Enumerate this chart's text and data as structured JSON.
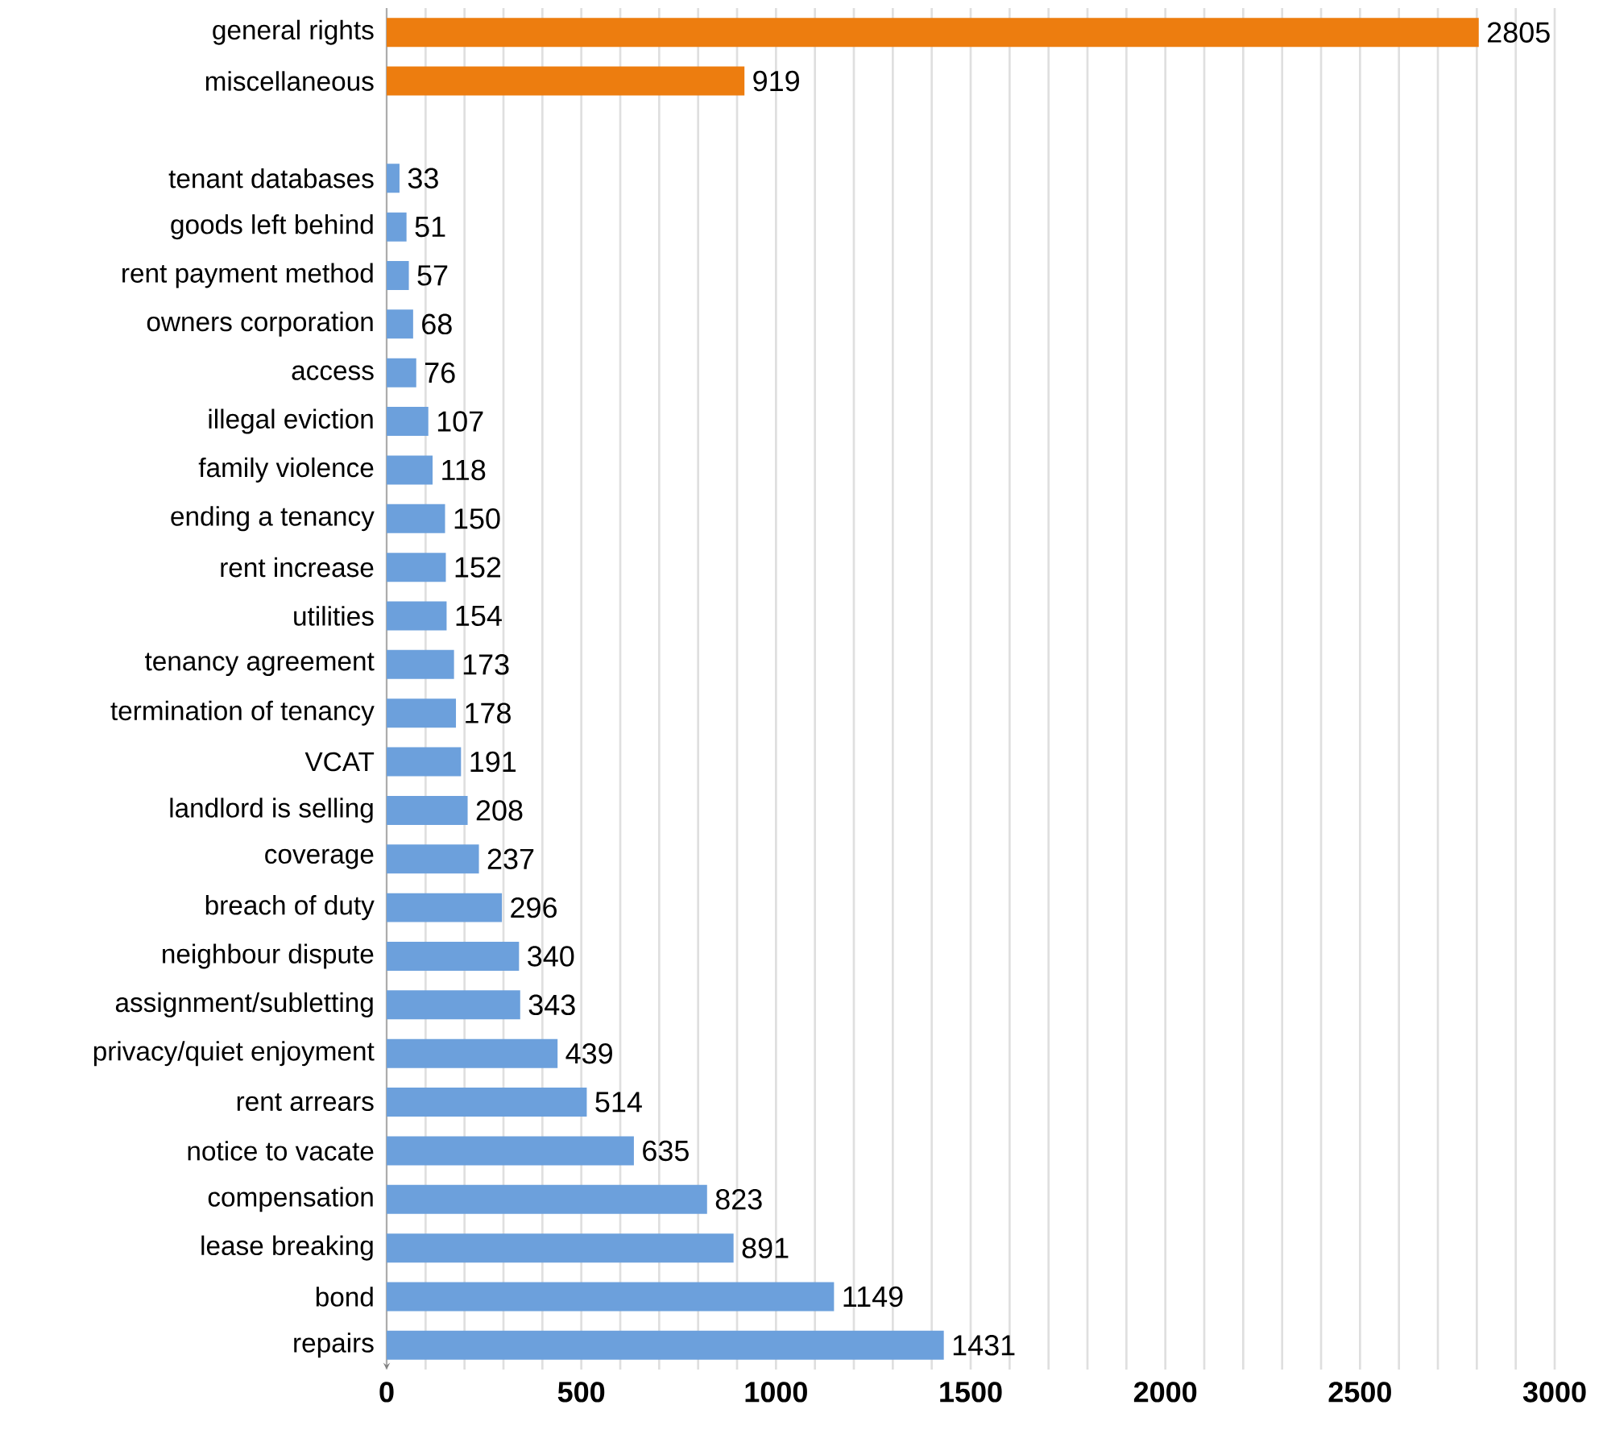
{
  "chart_data": {
    "type": "bar",
    "orientation": "horizontal",
    "data_labels": true,
    "grid": "x",
    "categories": [
      "general rights",
      "miscellaneous",
      null,
      "tenant databases",
      "goods left behind",
      "rent payment method",
      "owners corporation",
      "access",
      "illegal eviction",
      "family violence",
      "ending a tenancy",
      "rent increase",
      "utilities",
      "tenancy agreement",
      "termination of tenancy",
      "VCAT",
      "landlord is selling",
      "coverage",
      "breach of duty",
      "neighbour dispute",
      "assignment/subletting",
      "privacy/quiet enjoyment",
      "rent arrears",
      "notice to vacate",
      "compensation",
      "lease breaking",
      "bond",
      "repairs"
    ],
    "values": [
      2805,
      919,
      null,
      33,
      51,
      57,
      68,
      76,
      107,
      118,
      150,
      152,
      154,
      173,
      178,
      191,
      208,
      237,
      296,
      340,
      343,
      439,
      514,
      635,
      823,
      891,
      1149,
      1431
    ],
    "colors": [
      "#ed7d0f",
      "#ed7d0f",
      null,
      "#6ca0dc",
      "#6ca0dc",
      "#6ca0dc",
      "#6ca0dc",
      "#6ca0dc",
      "#6ca0dc",
      "#6ca0dc",
      "#6ca0dc",
      "#6ca0dc",
      "#6ca0dc",
      "#6ca0dc",
      "#6ca0dc",
      "#6ca0dc",
      "#6ca0dc",
      "#6ca0dc",
      "#6ca0dc",
      "#6ca0dc",
      "#6ca0dc",
      "#6ca0dc",
      "#6ca0dc",
      "#6ca0dc",
      "#6ca0dc",
      "#6ca0dc",
      "#6ca0dc",
      "#6ca0dc"
    ],
    "xlim": [
      0,
      3000
    ],
    "xticks": [
      0,
      {
        "value": 100,
        "label": null
      },
      {
        "value": 200,
        "label": null
      },
      {
        "value": 300,
        "label": null
      },
      {
        "value": 400,
        "label": null
      },
      500,
      {
        "value": 600,
        "label": null
      },
      {
        "value": 700,
        "label": null
      },
      {
        "value": 800,
        "label": null
      },
      {
        "value": 900,
        "label": null
      },
      1000,
      {
        "value": 1100,
        "label": null
      },
      {
        "value": 1200,
        "label": null
      },
      {
        "value": 1300,
        "label": null
      },
      {
        "value": 1400,
        "label": null
      },
      1500,
      {
        "value": 1600,
        "label": null
      },
      {
        "value": 1700,
        "label": null
      },
      {
        "value": 1800,
        "label": null
      },
      {
        "value": 1900,
        "label": null
      },
      2000,
      {
        "value": 2100,
        "label": null
      },
      {
        "value": 2200,
        "label": null
      },
      {
        "value": 2300,
        "label": null
      },
      {
        "value": 2400,
        "label": null
      },
      2500,
      {
        "value": 2600,
        "label": null
      },
      {
        "value": 2700,
        "label": null
      },
      {
        "value": 2800,
        "label": null
      },
      {
        "value": 2900,
        "label": null
      },
      3000
    ]
  }
}
